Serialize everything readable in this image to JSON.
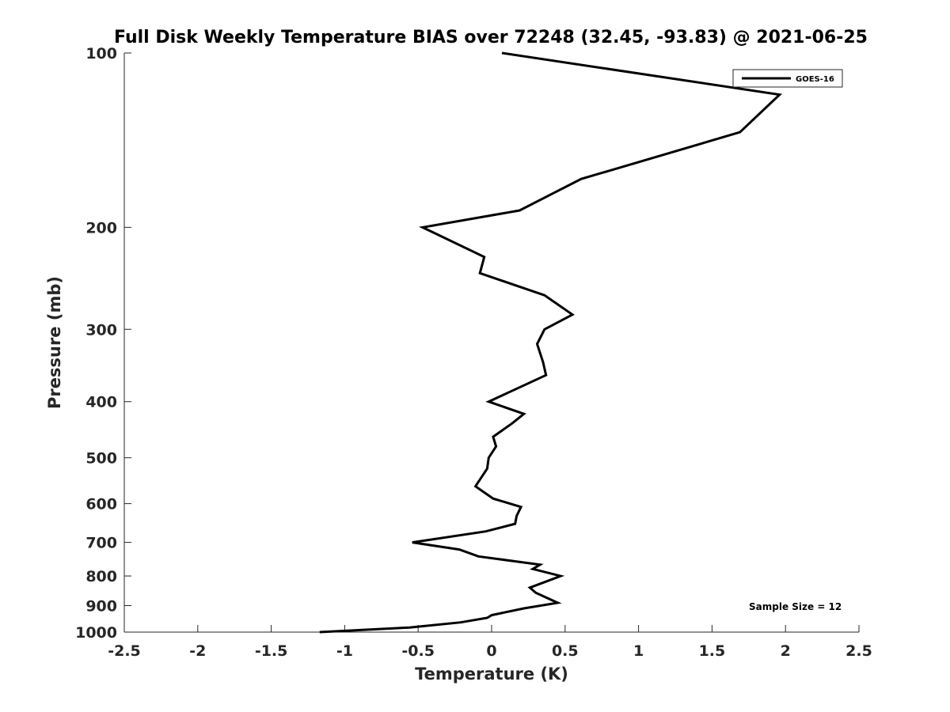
{
  "chart_data": {
    "type": "line",
    "title": "Full Disk Weekly Temperature BIAS over 72248 (32.45, -93.83) @ 2021-06-25",
    "xlabel": "Temperature (K)",
    "ylabel": "Pressure (mb)",
    "xlim": [
      -2.5,
      2.5
    ],
    "ylim": [
      100,
      1000
    ],
    "y_scale": "log",
    "y_reversed": true,
    "grid": false,
    "legend_position": "top-right",
    "x_ticks": [
      "-2.5",
      "-2",
      "-1.5",
      "-1",
      "-0.5",
      "0",
      "0.5",
      "1",
      "1.5",
      "2",
      "2.5"
    ],
    "x_tick_values": [
      -2.5,
      -2,
      -1.5,
      -1,
      -0.5,
      0,
      0.5,
      1,
      1.5,
      2,
      2.5
    ],
    "y_ticks": [
      "100",
      "200",
      "300",
      "400",
      "500",
      "600",
      "700",
      "800",
      "900",
      "1000"
    ],
    "y_tick_values": [
      100,
      200,
      300,
      400,
      500,
      600,
      700,
      800,
      900,
      1000
    ],
    "annotation": "Sample Size = 12",
    "series": [
      {
        "name": "GOES-16",
        "color": "#000000",
        "points": [
          {
            "t": 0.07,
            "p": 100
          },
          {
            "t": 1.96,
            "p": 118
          },
          {
            "t": 1.69,
            "p": 137
          },
          {
            "t": 0.61,
            "p": 165
          },
          {
            "t": 0.19,
            "p": 187
          },
          {
            "t": -0.47,
            "p": 200
          },
          {
            "t": -0.05,
            "p": 225
          },
          {
            "t": -0.08,
            "p": 240
          },
          {
            "t": 0.36,
            "p": 262
          },
          {
            "t": 0.55,
            "p": 283
          },
          {
            "t": 0.36,
            "p": 300
          },
          {
            "t": 0.31,
            "p": 318
          },
          {
            "t": 0.35,
            "p": 342
          },
          {
            "t": 0.37,
            "p": 360
          },
          {
            "t": -0.02,
            "p": 400
          },
          {
            "t": 0.22,
            "p": 420
          },
          {
            "t": 0.14,
            "p": 436
          },
          {
            "t": 0.01,
            "p": 460
          },
          {
            "t": 0.03,
            "p": 478
          },
          {
            "t": -0.02,
            "p": 500
          },
          {
            "t": -0.03,
            "p": 522
          },
          {
            "t": -0.11,
            "p": 560
          },
          {
            "t": 0.01,
            "p": 588
          },
          {
            "t": 0.2,
            "p": 608
          },
          {
            "t": 0.17,
            "p": 630
          },
          {
            "t": 0.16,
            "p": 650
          },
          {
            "t": -0.04,
            "p": 670
          },
          {
            "t": -0.54,
            "p": 700
          },
          {
            "t": -0.22,
            "p": 720
          },
          {
            "t": -0.09,
            "p": 740
          },
          {
            "t": 0.33,
            "p": 765
          },
          {
            "t": 0.28,
            "p": 778
          },
          {
            "t": 0.47,
            "p": 800
          },
          {
            "t": 0.26,
            "p": 838
          },
          {
            "t": 0.3,
            "p": 855
          },
          {
            "t": 0.45,
            "p": 890
          },
          {
            "t": 0.22,
            "p": 910
          },
          {
            "t": 0.0,
            "p": 935
          },
          {
            "t": -0.03,
            "p": 945
          },
          {
            "t": -0.21,
            "p": 962
          },
          {
            "t": -0.56,
            "p": 982
          },
          {
            "t": -1.17,
            "p": 1000
          }
        ]
      }
    ]
  }
}
